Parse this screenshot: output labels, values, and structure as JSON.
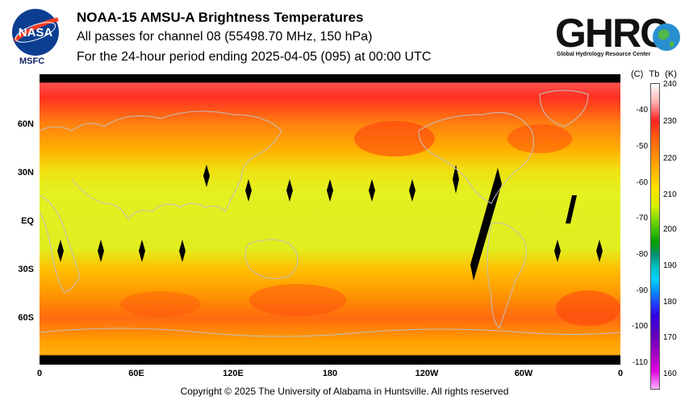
{
  "header": {
    "title": "NOAA-15 AMSU-A Brightness Temperatures",
    "subtitle1": "All passes for channel 08 (55498.70 MHz, 150 hPa)",
    "subtitle2": "For the 24-hour period ending 2025-04-05 (095) at 00:00 UTC"
  },
  "logos": {
    "nasa_text": "NASA",
    "msfc_label": "MSFC",
    "ghrc_text": "GHRC",
    "ghrc_sub": "Global Hydrology Resource Center"
  },
  "map": {
    "lat_labels": [
      "60N",
      "30N",
      "EQ",
      "30S",
      "60S"
    ],
    "lon_labels": [
      "0",
      "60E",
      "120E",
      "180",
      "120W",
      "60W",
      "0"
    ]
  },
  "colorbar": {
    "header_c": "(C)",
    "header_tb": "Tb",
    "header_k": "(K)",
    "kelvin_ticks": [
      "240",
      "230",
      "220",
      "210",
      "200",
      "190",
      "180",
      "170",
      "160"
    ],
    "celsius_ticks": [
      "-40",
      "-50",
      "-60",
      "-70",
      "-80",
      "-90",
      "-100",
      "-110"
    ],
    "range_k": [
      155,
      240
    ]
  },
  "footer": {
    "copyright": "Copyright © 2025 The University of Alabama in Huntsville.  All rights reserved"
  },
  "colors": {
    "warm": "#ff4020",
    "mid": "#ffb000",
    "cool": "#e8f020",
    "coast": "#c0c0c0"
  }
}
